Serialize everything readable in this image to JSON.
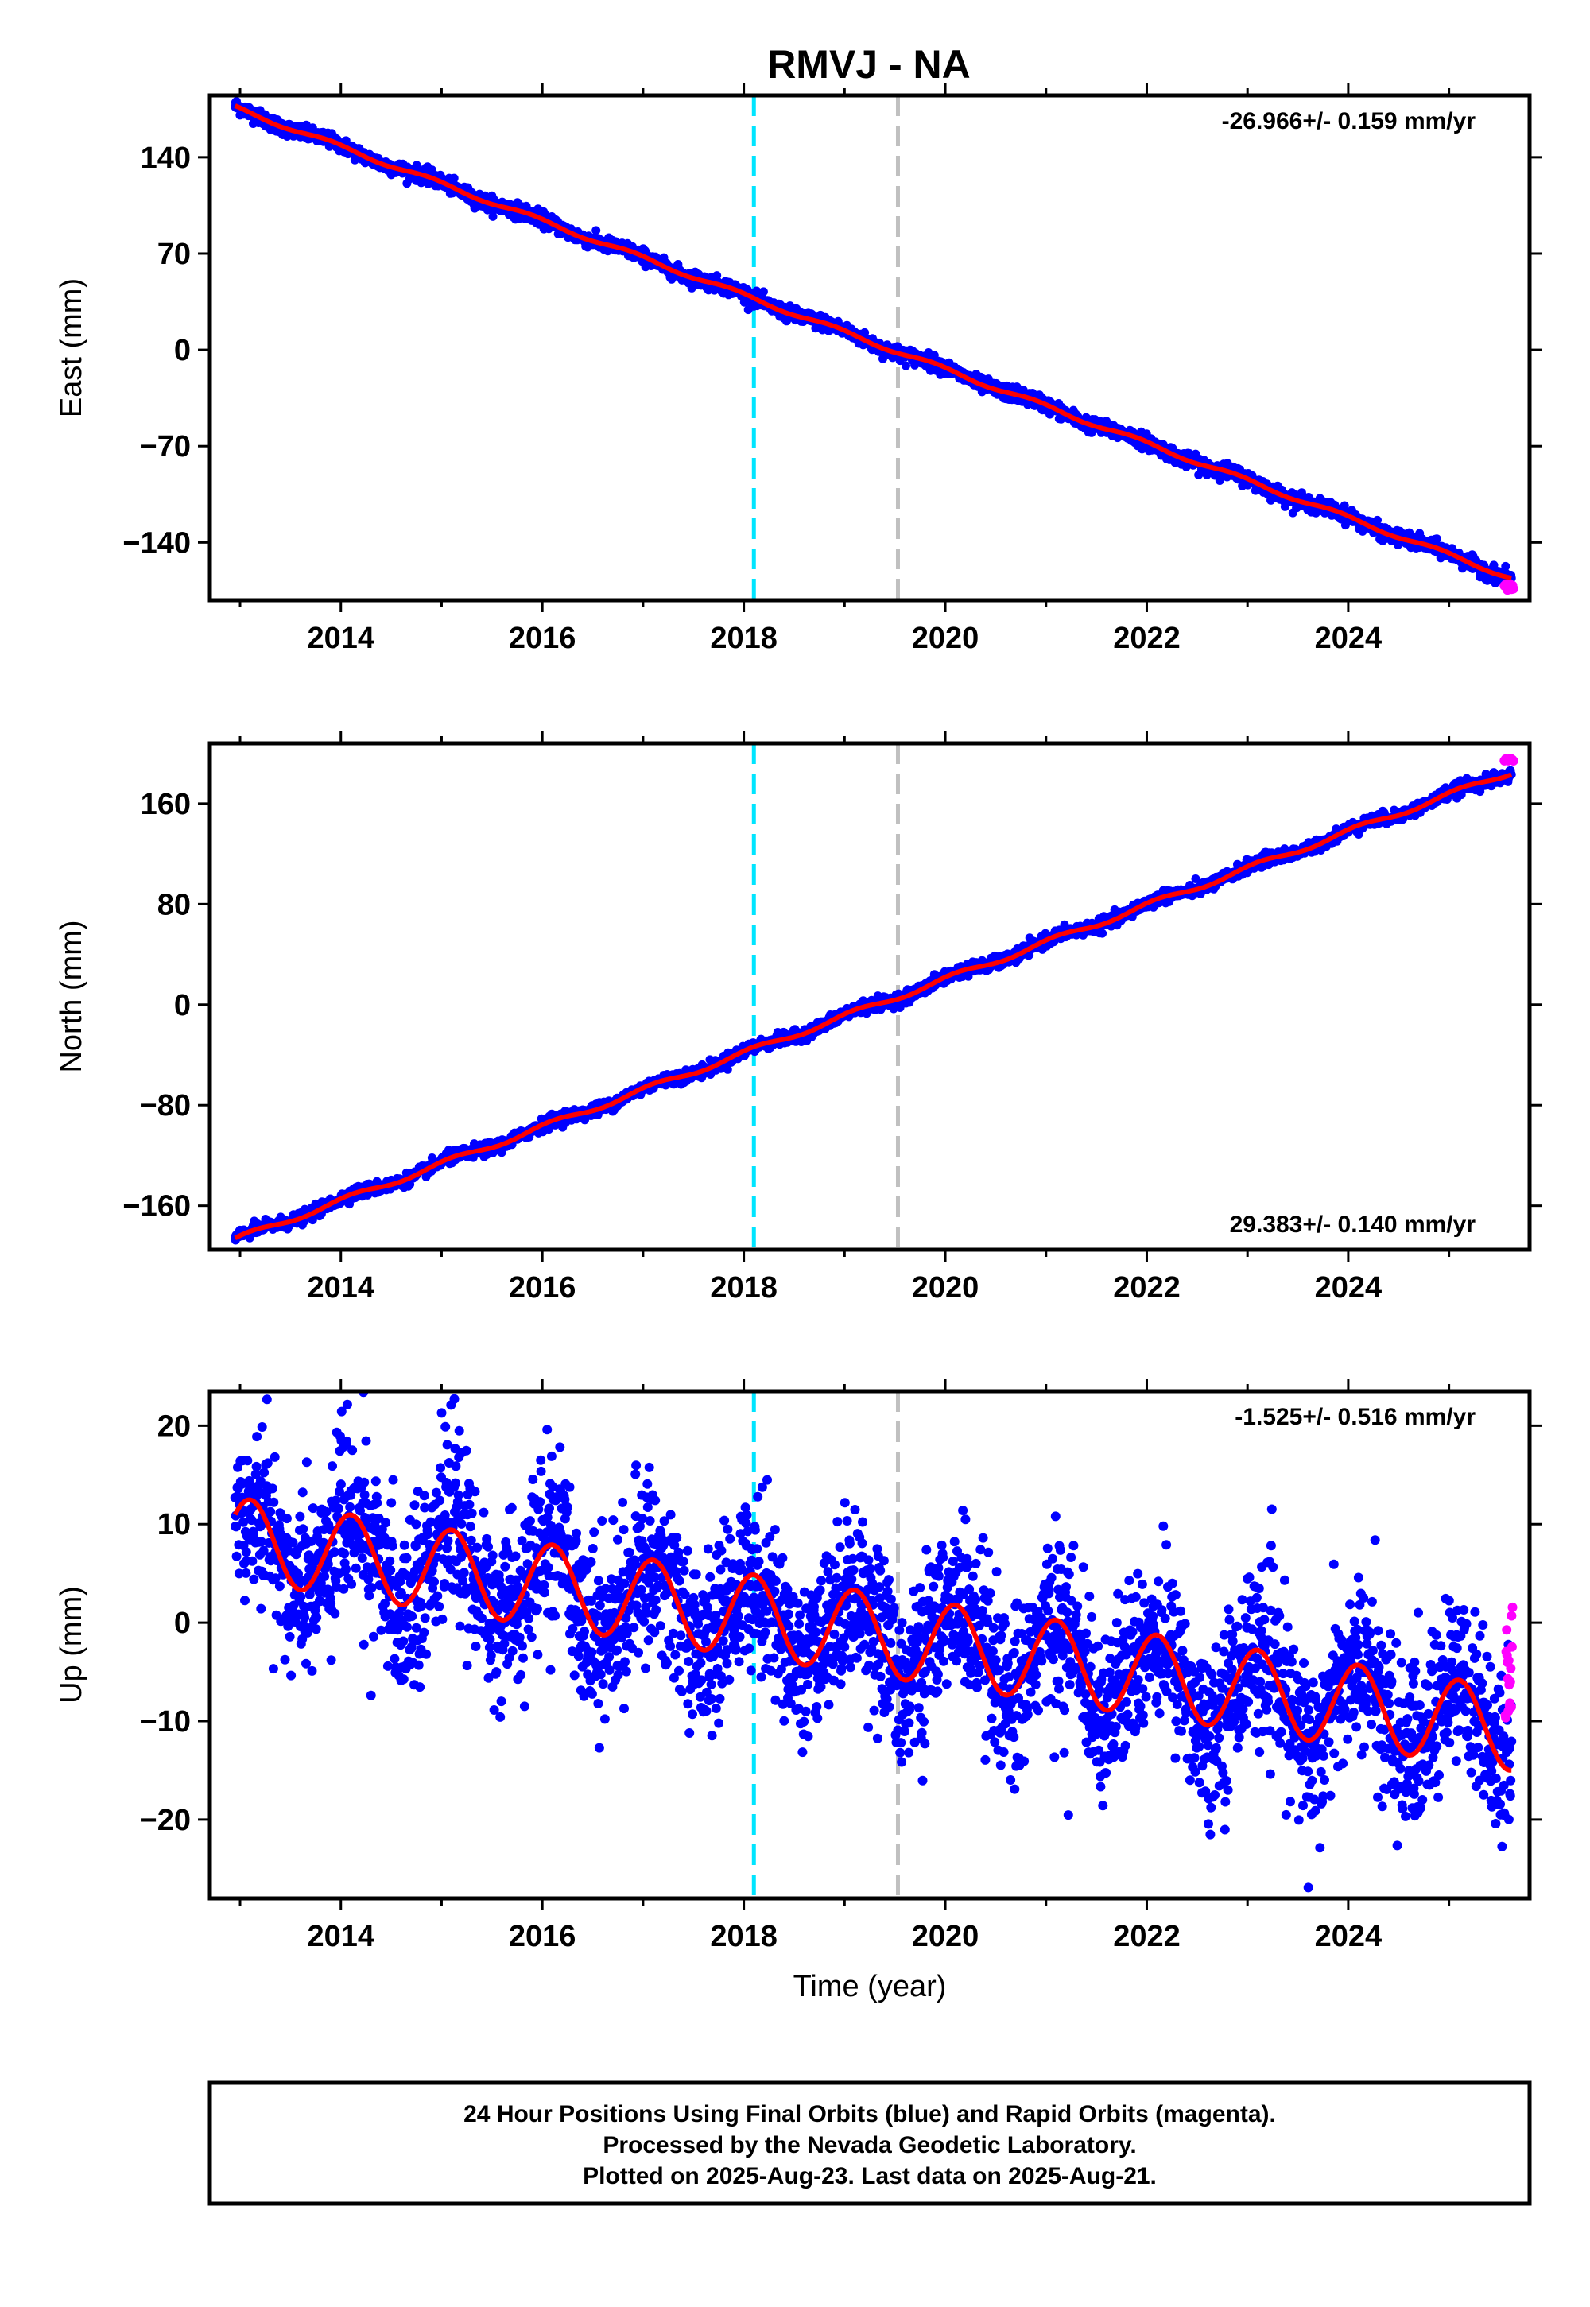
{
  "chart_title": "RMVJ - NA",
  "colors": {
    "final_orbits": "#0000ff",
    "rapid_orbits": "#ff00ff",
    "model_fit": "#ff0000",
    "event_line_1": "#00e5ff",
    "event_line_2": "#c0c0c0",
    "frame": "#000000"
  },
  "chart_data": [
    {
      "type": "scatter",
      "panel": "east",
      "ylabel": "East (mm)",
      "xlabel": "",
      "rate_label": "-26.966+/- 0.159 mm/yr",
      "rate_position": "top-right",
      "xlim": [
        2012.7,
        2025.8
      ],
      "ylim": [
        -182,
        185
      ],
      "xticks": [
        2014,
        2016,
        2018,
        2020,
        2022,
        2024
      ],
      "xtick_labels": [
        "2014",
        "2016",
        "2018",
        "2020",
        "2022",
        "2024"
      ],
      "yticks": [
        140,
        70,
        0,
        -70,
        -140
      ],
      "ytick_labels": [
        "140",
        "70",
        "0",
        "−70",
        "−140"
      ],
      "event_lines": [
        2018.1,
        2019.53
      ],
      "model": {
        "start": 2012.95,
        "end": 2025.62,
        "y0": 176,
        "rate": -26.966,
        "annual_amp": 1.6,
        "annual_phase": 0.3,
        "steps": []
      },
      "final_noise": 2.6,
      "rapid": {
        "start": 2025.55,
        "end": 2025.64,
        "count": 10,
        "y0": -172,
        "spread": 3
      }
    },
    {
      "type": "scatter",
      "panel": "north",
      "ylabel": "North (mm)",
      "xlabel": "",
      "rate_label": "29.383+/- 0.140 mm/yr",
      "rate_position": "bottom-right",
      "xlim": [
        2012.7,
        2025.8
      ],
      "ylim": [
        -195,
        208
      ],
      "xticks": [
        2014,
        2016,
        2018,
        2020,
        2022,
        2024
      ],
      "xtick_labels": [
        "2014",
        "2016",
        "2018",
        "2020",
        "2022",
        "2024"
      ],
      "yticks": [
        160,
        80,
        0,
        -80,
        -160
      ],
      "ytick_labels": [
        "160",
        "80",
        "0",
        "−80",
        "−160"
      ],
      "event_lines": [
        2018.1,
        2019.53
      ],
      "model": {
        "start": 2012.95,
        "end": 2025.62,
        "y0": -187,
        "rate": 29.383,
        "annual_amp": 2.2,
        "annual_phase": 0.1,
        "steps": []
      },
      "final_noise": 2.4,
      "rapid": {
        "start": 2025.55,
        "end": 2025.64,
        "count": 8,
        "y0": 196,
        "spread": 2
      }
    },
    {
      "type": "scatter",
      "panel": "up",
      "ylabel": "Up (mm)",
      "xlabel": "Time (year)",
      "rate_label": "-1.525+/- 0.516 mm/yr",
      "rate_position": "top-right",
      "xlim": [
        2012.7,
        2025.8
      ],
      "ylim": [
        -28,
        23.5
      ],
      "xticks": [
        2014,
        2016,
        2018,
        2020,
        2022,
        2024
      ],
      "xtick_labels": [
        "2014",
        "2016",
        "2018",
        "2020",
        "2022",
        "2024"
      ],
      "yticks": [
        20,
        10,
        0,
        -10,
        -20
      ],
      "ytick_labels": [
        "20",
        "10",
        "0",
        "−10",
        "−20"
      ],
      "event_lines": [
        2018.1,
        2019.53
      ],
      "model": {
        "start": 2012.95,
        "end": 2025.62,
        "y0": 8.5,
        "rate": -1.525,
        "annual_amp": 4.2,
        "annual_phase": 0.1,
        "steps": []
      },
      "final_noise": 4.2,
      "rapid": {
        "start": 2025.56,
        "end": 2025.63,
        "count": 18,
        "y0": -3.5,
        "spread": 6.5
      }
    }
  ],
  "footer": {
    "line1": "24 Hour Positions Using Final Orbits (blue) and Rapid Orbits (magenta).",
    "line2": "Processed by the Nevada Geodetic Laboratory.",
    "line3": "Plotted on 2025-Aug-23. Last data on 2025-Aug-21."
  }
}
